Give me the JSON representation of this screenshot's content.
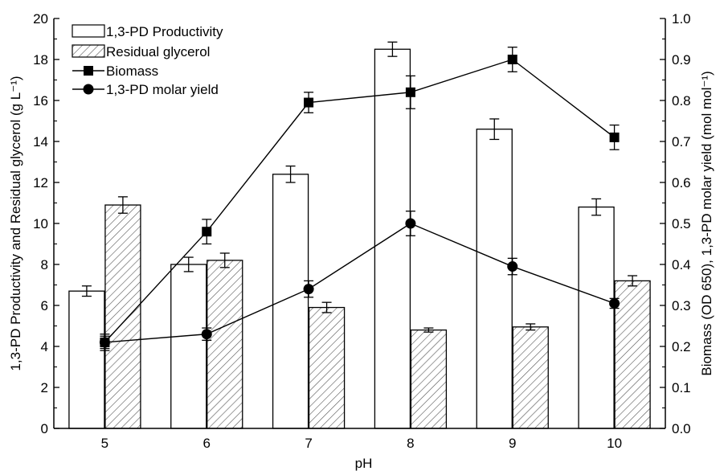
{
  "chart_data": {
    "type": "bar",
    "title": "",
    "categories": [
      "5",
      "6",
      "7",
      "8",
      "9",
      "10"
    ],
    "xlabel": "pH",
    "ylabel_left": "1,3-PD Productivity and Residual glycerol (g L⁻¹)",
    "ylabel_right": "Biomass (OD 650), 1,3-PD molar yield (mol mol⁻¹)",
    "ylim_left": [
      0,
      20
    ],
    "ylim_right": [
      0.0,
      1.0
    ],
    "yticks_left": [
      "0",
      "2",
      "4",
      "6",
      "8",
      "10",
      "12",
      "14",
      "16",
      "18",
      "20"
    ],
    "yticks_right": [
      "0.0",
      "0.1",
      "0.2",
      "0.3",
      "0.4",
      "0.5",
      "0.6",
      "0.7",
      "0.8",
      "0.9",
      "1.0"
    ],
    "grid": false,
    "legend_position": "top-left",
    "bar_series": [
      {
        "name": "1,3-PD Productivity",
        "fill": "white",
        "values": [
          6.7,
          8.0,
          12.4,
          18.5,
          14.6,
          10.8
        ],
        "errors": [
          0.25,
          0.35,
          0.4,
          0.35,
          0.5,
          0.4
        ]
      },
      {
        "name": "Residual glycerol",
        "fill": "hatch",
        "values": [
          10.9,
          8.2,
          5.9,
          4.8,
          4.95,
          7.2
        ],
        "errors": [
          0.4,
          0.35,
          0.25,
          0.1,
          0.15,
          0.25
        ]
      }
    ],
    "line_series": [
      {
        "name": "Biomass",
        "marker": "square",
        "axis": "right",
        "values": [
          0.21,
          0.48,
          0.795,
          0.82,
          0.9,
          0.71
        ],
        "errors": [
          0.02,
          0.03,
          0.025,
          0.04,
          0.03,
          0.03
        ]
      },
      {
        "name": "1,3-PD molar yield",
        "marker": "circle",
        "axis": "right",
        "values": [
          0.21,
          0.23,
          0.34,
          0.5,
          0.395,
          0.305
        ],
        "errors": [
          0.015,
          0.015,
          0.02,
          0.03,
          0.02,
          0.012
        ]
      }
    ],
    "colors": {
      "stroke": "#000000",
      "bar_fill": "#ffffff",
      "hatch": "#555555",
      "background": "#ffffff"
    }
  }
}
